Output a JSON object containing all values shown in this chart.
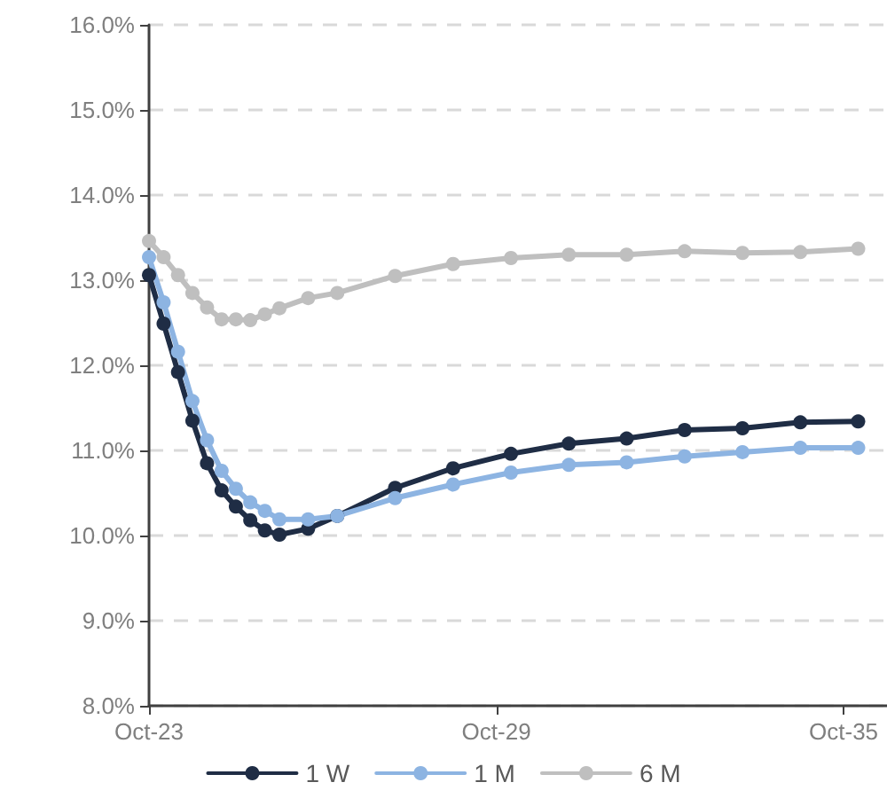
{
  "chart_data": {
    "type": "line",
    "x": [
      "2023-10",
      "2024-01",
      "2024-04",
      "2024-07",
      "2024-10",
      "2025-01",
      "2025-04",
      "2025-07",
      "2025-10",
      "2026-01",
      "2026-07",
      "2027-01",
      "2028-01",
      "2029-01",
      "2030-01",
      "2031-01",
      "2032-01",
      "2033-01",
      "2034-01",
      "2035-01",
      "2036-01"
    ],
    "series": [
      {
        "name": "1 W",
        "color": "#1f2d45",
        "values": [
          13.06,
          12.49,
          11.92,
          11.35,
          10.85,
          10.53,
          10.34,
          10.18,
          10.06,
          10.01,
          10.08,
          10.23,
          10.56,
          10.79,
          10.96,
          11.08,
          11.14,
          11.24,
          11.26,
          11.33,
          11.34
        ]
      },
      {
        "name": "1 M",
        "color": "#8db4e2",
        "values": [
          13.27,
          12.74,
          12.16,
          11.58,
          11.12,
          10.76,
          10.55,
          10.39,
          10.29,
          10.19,
          10.19,
          10.23,
          10.44,
          10.6,
          10.74,
          10.83,
          10.86,
          10.93,
          10.98,
          11.03,
          11.03
        ]
      },
      {
        "name": "6 M",
        "color": "#bfbfbf",
        "values": [
          13.46,
          13.27,
          13.06,
          12.85,
          12.68,
          12.54,
          12.54,
          12.53,
          12.6,
          12.67,
          12.79,
          12.85,
          13.05,
          13.19,
          13.26,
          13.3,
          13.3,
          13.34,
          13.32,
          13.33,
          13.37
        ]
      }
    ],
    "xlim": [
      "2023-10",
      "2036-07"
    ],
    "xticks": [
      {
        "value": "2023-10",
        "label": "Oct-23"
      },
      {
        "value": "2029-10",
        "label": "Oct-29"
      },
      {
        "value": "2035-10",
        "label": "Oct-35"
      }
    ],
    "ylim": [
      8,
      16
    ],
    "yticks": [
      {
        "value": 8,
        "label": "8.0%"
      },
      {
        "value": 9,
        "label": "9.0%"
      },
      {
        "value": 10,
        "label": "10.0%"
      },
      {
        "value": 11,
        "label": "11.0%"
      },
      {
        "value": 12,
        "label": "12.0%"
      },
      {
        "value": 13,
        "label": "13.0%"
      },
      {
        "value": 14,
        "label": "14.0%"
      },
      {
        "value": 15,
        "label": "15.0%"
      },
      {
        "value": 16,
        "label": "16.0%"
      }
    ],
    "grid": "y",
    "legend": "bottom",
    "marker": "circle",
    "line_style": "solid"
  }
}
